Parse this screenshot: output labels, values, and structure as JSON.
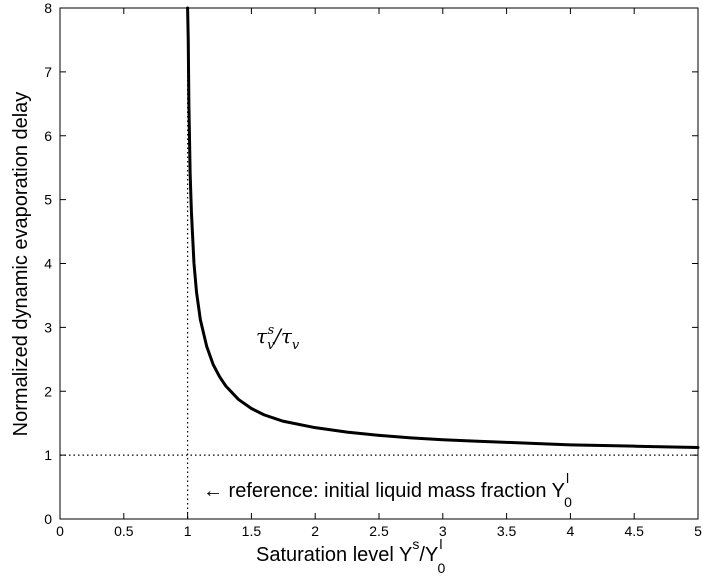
{
  "chart_data": {
    "type": "line",
    "title": "",
    "xlabel": "Saturation level Y",
    "xlabel_sup": "s",
    "xlabel_div": "/Y",
    "xlabel_sub": "0",
    "xlabel_sup2": "l",
    "ylabel": "Normalized dynamic evaporation delay",
    "xlim": [
      0,
      5
    ],
    "ylim": [
      0,
      8
    ],
    "xticks": [
      0,
      0.5,
      1,
      1.5,
      2,
      2.5,
      3,
      3.5,
      4,
      4.5,
      5
    ],
    "xtick_labels": [
      "0",
      "0.5",
      "1",
      "1.5",
      "2",
      "2.5",
      "3",
      "3.5",
      "4",
      "4.5",
      "5"
    ],
    "yticks": [
      0,
      1,
      2,
      3,
      4,
      5,
      6,
      7,
      8
    ],
    "ytick_labels": [
      "0",
      "1",
      "2",
      "3",
      "4",
      "5",
      "6",
      "7",
      "8"
    ],
    "grid": false,
    "series": [
      {
        "name": "τ_v^s/τ_v",
        "color": "#000000",
        "x": [
          1.0,
          1.005,
          1.01,
          1.02,
          1.03,
          1.05,
          1.07,
          1.1,
          1.15,
          1.2,
          1.25,
          1.3,
          1.4,
          1.5,
          1.6,
          1.75,
          2.0,
          2.25,
          2.5,
          2.75,
          3.0,
          3.25,
          3.5,
          3.75,
          4.0,
          4.25,
          4.5,
          4.75,
          5.0
        ],
        "y": [
          8.0,
          7.5,
          6.5,
          5.4,
          4.8,
          4.0,
          3.55,
          3.12,
          2.7,
          2.42,
          2.23,
          2.08,
          1.87,
          1.73,
          1.63,
          1.53,
          1.43,
          1.36,
          1.31,
          1.27,
          1.24,
          1.22,
          1.2,
          1.18,
          1.16,
          1.15,
          1.14,
          1.13,
          1.12
        ]
      }
    ],
    "reference_lines": {
      "vertical_x": 1,
      "horizontal_y": 1,
      "style": "dotted"
    },
    "annotations": {
      "curve_label": {
        "tau": "τ",
        "sub": "v",
        "sup": "s",
        "slash": "/τ",
        "sub2": "v"
      },
      "reference_text": "← reference: initial liquid mass fraction Y",
      "reference_sup": "l",
      "reference_sub": "0"
    }
  }
}
